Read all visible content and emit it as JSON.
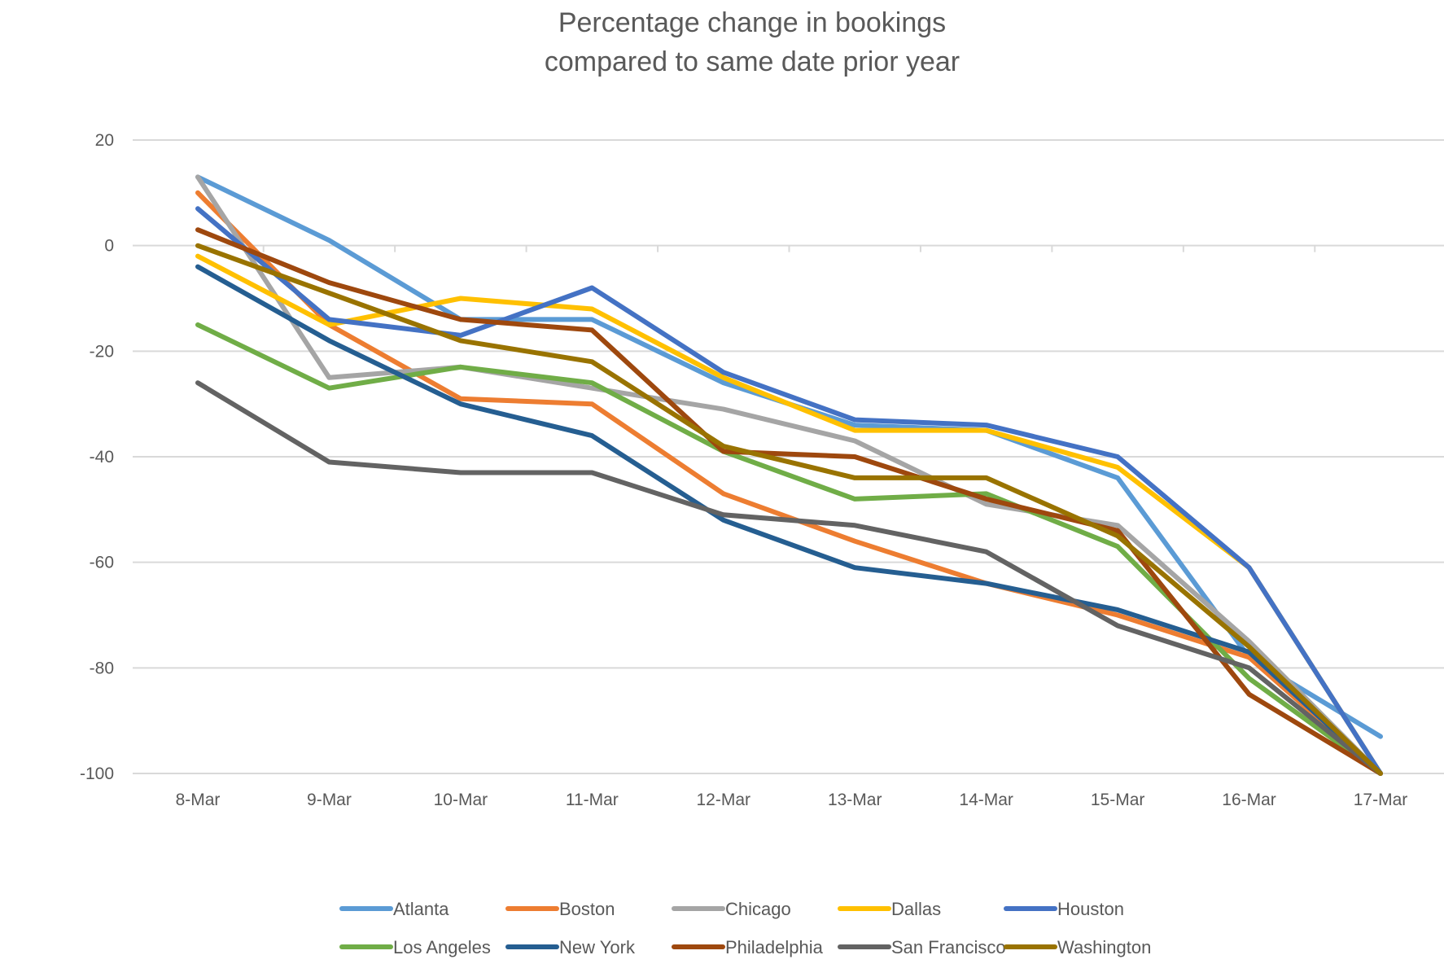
{
  "chart_data": {
    "type": "line",
    "title": [
      "Percentage change in bookings",
      "compared to same date prior year"
    ],
    "xlabel": "",
    "ylabel": "",
    "categories": [
      "8-Mar",
      "9-Mar",
      "10-Mar",
      "11-Mar",
      "12-Mar",
      "13-Mar",
      "14-Mar",
      "15-Mar",
      "16-Mar",
      "17-Mar"
    ],
    "ylim": [
      -100,
      20
    ],
    "yticks": [
      20,
      0,
      -20,
      -40,
      -60,
      -80,
      -100
    ],
    "ytick_labels": [
      "20",
      "0",
      "-20",
      "-40",
      "-60",
      "-80",
      "-100"
    ],
    "grid": true,
    "legend_position": "bottom",
    "series": [
      {
        "name": "Atlanta",
        "color": "#5B9BD5",
        "values": [
          13,
          1,
          -14,
          -14,
          -26,
          -34,
          -35,
          -44,
          -78,
          -93
        ]
      },
      {
        "name": "Boston",
        "color": "#ED7D31",
        "values": [
          10,
          -15,
          -29,
          -30,
          -47,
          -56,
          -64,
          -70,
          -78,
          -100
        ]
      },
      {
        "name": "Chicago",
        "color": "#A5A5A5",
        "values": [
          13,
          -25,
          -23,
          -27,
          -31,
          -37,
          -49,
          -53,
          -75,
          -100
        ]
      },
      {
        "name": "Dallas",
        "color": "#FFC000",
        "values": [
          -2,
          -15,
          -10,
          -12,
          -25,
          -35,
          -35,
          -42,
          -61,
          -100
        ]
      },
      {
        "name": "Houston",
        "color": "#4472C4",
        "values": [
          7,
          -14,
          -17,
          -8,
          -24,
          -33,
          -34,
          -40,
          -61,
          -100
        ]
      },
      {
        "name": "Los Angeles",
        "color": "#70AD47",
        "values": [
          -15,
          -27,
          -23,
          -26,
          -39,
          -48,
          -47,
          -57,
          -82,
          -100
        ]
      },
      {
        "name": "New York",
        "color": "#255E91",
        "values": [
          -4,
          -18,
          -30,
          -36,
          -52,
          -61,
          -64,
          -69,
          -77,
          -100
        ]
      },
      {
        "name": "Philadelphia",
        "color": "#9E480E",
        "values": [
          3,
          -7,
          -14,
          -16,
          -39,
          -40,
          -48,
          -54,
          -85,
          -100
        ]
      },
      {
        "name": "San Francisco",
        "color": "#636363",
        "values": [
          -26,
          -41,
          -43,
          -43,
          -51,
          -53,
          -58,
          -72,
          -80,
          -100
        ]
      },
      {
        "name": "Washington",
        "color": "#997300",
        "values": [
          0,
          -9,
          -18,
          -22,
          -38,
          -44,
          -44,
          -55,
          -76,
          -100
        ]
      }
    ]
  }
}
